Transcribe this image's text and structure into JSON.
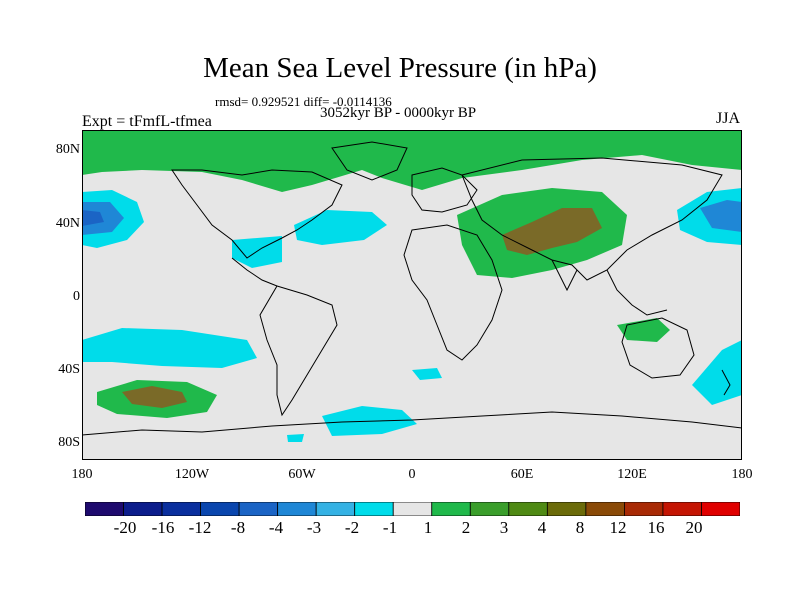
{
  "title": "Mean Sea Level Pressure (in hPa)",
  "stats": "rmsd= 0.929521 diff= -0.0114136",
  "subtitle": "3052kyr BP - 0000kyr BP",
  "experiment": "Expt = tFmfL-tfmea",
  "season": "JJA",
  "lat_labels": [
    "80N",
    "40N",
    "0",
    "40S",
    "80S"
  ],
  "lon_labels": [
    "180",
    "120W",
    "60W",
    "0",
    "60E",
    "120E",
    "180"
  ],
  "colorbar": {
    "labels": [
      "-20",
      "-16",
      "-12",
      "-8",
      "-4",
      "-3",
      "-2",
      "-1",
      "1",
      "2",
      "3",
      "4",
      "8",
      "12",
      "16",
      "20"
    ],
    "colors": [
      "#1e0a6e",
      "#0c1d8c",
      "#0a2f9e",
      "#0a46ae",
      "#1b64c5",
      "#1f87d6",
      "#34b2e4",
      "#00dcea",
      "#e6e6e6",
      "#20b94b",
      "#3a9e2b",
      "#4f8a14",
      "#6b6b0a",
      "#8a4a07",
      "#a82a05",
      "#c41503",
      "#e00000"
    ]
  },
  "colors": {
    "neutral": "#e6e6e6",
    "pos1": "#20b94b",
    "pos2": "#4f8a14",
    "pos3": "#7a6a28",
    "neg1": "#00dcea",
    "neg2": "#1f87d6",
    "neg3": "#1b64c5",
    "coast": "#000000"
  }
}
